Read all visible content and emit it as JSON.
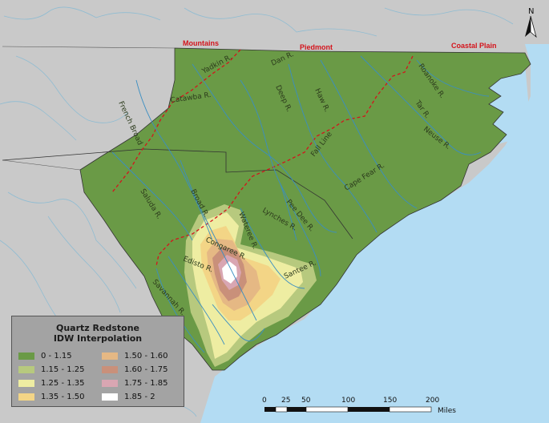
{
  "colors": {
    "land_outside": "#c9c9c9",
    "ocean": "#b3dcf3",
    "green": "#6a9a46",
    "c2": "#b7c97e",
    "c3": "#eeeda2",
    "c4": "#f3d586",
    "c5": "#e5b884",
    "c6": "#c9907a",
    "c7": "#d9a6b2",
    "c8": "#ffffff",
    "fall_line": "#d4141c"
  },
  "north_arrow": {
    "label": "N"
  },
  "regions": {
    "mountains": "Mountains",
    "piedmont": "Piedmont",
    "coastal": "Coastal Plain"
  },
  "rivers": {
    "yadkin": "Yadkin R.",
    "dan": "Dan R.",
    "roanoke": "Roanoke R.",
    "catawba": "Catawba R.",
    "deep": "Deep R.",
    "haw": "Haw R.",
    "tar": "Tar R.",
    "french_broad": "French Broad",
    "neuse": "Neuse R.",
    "fall_line": "Fall Line",
    "cape_fear": "Cape Fear R.",
    "saluda": "Saluda R.",
    "broad": "Broad R.",
    "pee_dee": "Pee Dee R.",
    "lynches": "Lynches R.",
    "wateree": "Wateree R.",
    "congaree": "Congaree R.",
    "edisto": "Edisto R.",
    "santee": "Santee R.",
    "savannah": "Savannah R."
  },
  "legend": {
    "title_line1": "Quartz Redstone",
    "title_line2": "IDW Interpolation",
    "items": [
      {
        "label": "0 - 1.15",
        "color": "#6a9a46"
      },
      {
        "label": "1.15 - 1.25",
        "color": "#b7c97e"
      },
      {
        "label": "1.25 - 1.35",
        "color": "#eeeda2"
      },
      {
        "label": "1.35 - 1.50",
        "color": "#f3d586"
      },
      {
        "label": "1.50 - 1.60",
        "color": "#e5b884"
      },
      {
        "label": "1.60 - 1.75",
        "color": "#c9907a"
      },
      {
        "label": "1.75 - 1.85",
        "color": "#d9a6b2"
      },
      {
        "label": "1.85 - 2",
        "color": "#ffffff"
      }
    ]
  },
  "scale_bar": {
    "ticks": [
      "0",
      "25",
      "50",
      "100",
      "150",
      "200"
    ],
    "unit": "Miles"
  }
}
